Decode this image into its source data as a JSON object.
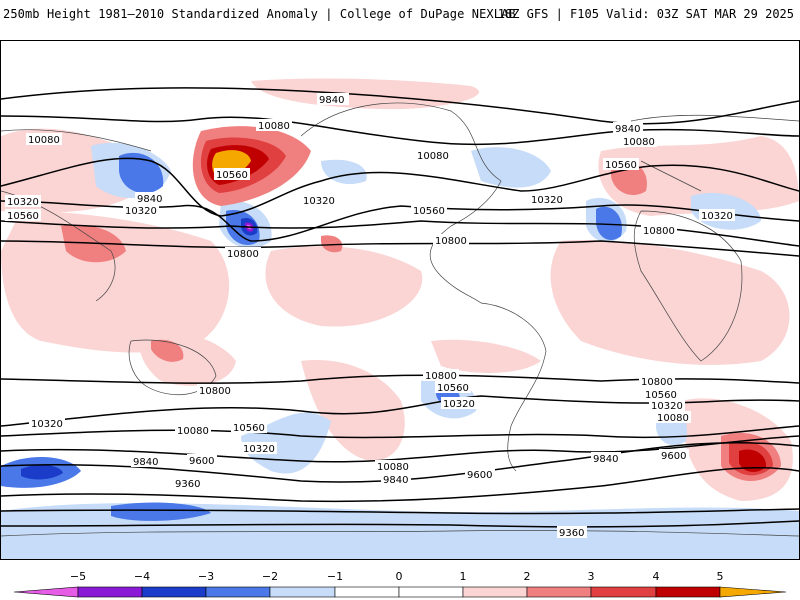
{
  "header": {
    "title_left": "250mb Height 1981–2010 Standardized Anomaly | College of DuPage NEXLAB",
    "title_right": "18Z GFS | F105 Valid: 03Z SAT MAR 29 2025"
  },
  "colors": {
    "neg5": "#e65ce6",
    "neg4": "#8a1ad6",
    "neg3": "#1a3cc8",
    "neg2": "#4a78e8",
    "neg1": "#c6dcf8",
    "pos1": "#fbd4d4",
    "pos2": "#f08080",
    "pos3": "#e04040",
    "pos4": "#c00000",
    "pos5": "#f5a800",
    "contour": "#000000",
    "coast": "#444444"
  },
  "colorbar": {
    "ticks": [
      "−5",
      "−4",
      "−3",
      "−2",
      "−1",
      "0",
      "1",
      "2",
      "3",
      "4",
      "5"
    ]
  },
  "contour_labels": [
    "9840",
    "10080",
    "10560",
    "10320",
    "10800",
    "9600",
    "9360"
  ]
}
